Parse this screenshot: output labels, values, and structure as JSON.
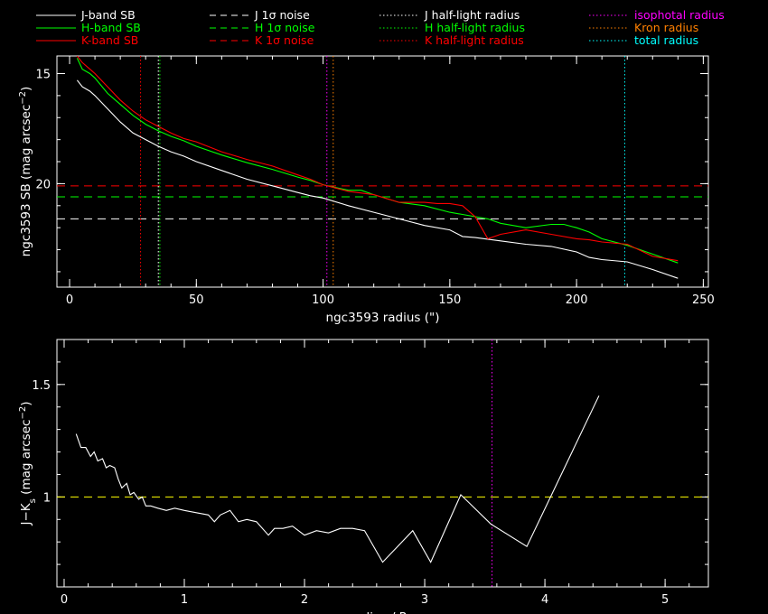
{
  "legend": {
    "columns": [
      [
        {
          "label": "J-band SB",
          "color": "#ffffff",
          "style": "solid"
        },
        {
          "label": "H-band SB",
          "color": "#00ff00",
          "style": "solid"
        },
        {
          "label": "K-band SB",
          "color": "#ff0000",
          "style": "solid"
        }
      ],
      [
        {
          "label": "J 1σ noise",
          "color": "#ffffff",
          "style": "dashed"
        },
        {
          "label": "H 1σ noise",
          "color": "#00ff00",
          "style": "dashed"
        },
        {
          "label": "K 1σ noise",
          "color": "#ff0000",
          "style": "dashed"
        }
      ],
      [
        {
          "label": "J half-light radius",
          "color": "#ffffff",
          "style": "dotted"
        },
        {
          "label": "H half-light radius",
          "color": "#00ff00",
          "style": "dotted"
        },
        {
          "label": "K half-light radius",
          "color": "#ff0000",
          "style": "dotted"
        }
      ],
      [
        {
          "label": "isophotal radius",
          "color": "#ff00ff",
          "style": "dotted",
          "label_color": "#ff00ff"
        },
        {
          "label": "Kron radius",
          "color": "#ff8000",
          "style": "dotted",
          "label_color": "#ff8000"
        },
        {
          "label": "total radius",
          "color": "#00ffff",
          "style": "dotted",
          "label_color": "#00ffff"
        }
      ]
    ]
  },
  "chart_data": [
    {
      "type": "line",
      "xlabel": "ngc3593 radius (\")",
      "ylabel": "ngc3593 SB (mag arcsec",
      "ylabel_sup": "−2",
      "ylabel_end": ")",
      "xlim": [
        -5,
        252
      ],
      "ylim": [
        24.7,
        14.2
      ],
      "xticks": [
        0,
        50,
        100,
        150,
        200,
        250
      ],
      "yticks": [
        15,
        20
      ],
      "series": [
        {
          "name": "J-band SB",
          "color": "#ffffff",
          "x": [
            3,
            5,
            8,
            10,
            15,
            20,
            25,
            30,
            35,
            40,
            45,
            50,
            60,
            70,
            80,
            90,
            95,
            100,
            110,
            120,
            130,
            140,
            150,
            155,
            160,
            170,
            180,
            190,
            200,
            205,
            210,
            220,
            230,
            240
          ],
          "y": [
            15.3,
            15.6,
            15.8,
            16.0,
            16.6,
            17.2,
            17.7,
            18.0,
            18.3,
            18.55,
            18.75,
            19.0,
            19.4,
            19.8,
            20.1,
            20.4,
            20.55,
            20.65,
            21.0,
            21.3,
            21.6,
            21.9,
            22.1,
            22.4,
            22.45,
            22.6,
            22.75,
            22.85,
            23.1,
            23.35,
            23.45,
            23.55,
            23.9,
            24.3
          ]
        },
        {
          "name": "H-band SB",
          "color": "#00ff00",
          "x": [
            3,
            5,
            8,
            10,
            15,
            20,
            25,
            30,
            35,
            40,
            45,
            50,
            60,
            70,
            80,
            90,
            95,
            100,
            110,
            115,
            120,
            130,
            140,
            150,
            155,
            165,
            170,
            180,
            190,
            195,
            200,
            205,
            210,
            220,
            230,
            240
          ],
          "y": [
            14.3,
            14.8,
            15.0,
            15.2,
            15.9,
            16.4,
            16.9,
            17.3,
            17.6,
            17.85,
            18.05,
            18.3,
            18.7,
            19.05,
            19.35,
            19.7,
            19.85,
            20.05,
            20.3,
            20.3,
            20.5,
            20.85,
            21.0,
            21.3,
            21.4,
            21.6,
            21.8,
            22.0,
            21.85,
            21.85,
            22.0,
            22.2,
            22.5,
            22.8,
            23.2,
            23.6
          ]
        },
        {
          "name": "K-band SB",
          "color": "#ff0000",
          "x": [
            3,
            5,
            8,
            10,
            15,
            20,
            25,
            30,
            35,
            40,
            45,
            50,
            60,
            70,
            80,
            90,
            95,
            100,
            105,
            110,
            120,
            130,
            135,
            140,
            145,
            150,
            155,
            160,
            165,
            170,
            180,
            190,
            200,
            205,
            210,
            220,
            230,
            240
          ],
          "y": [
            14.2,
            14.5,
            14.8,
            15.0,
            15.6,
            16.2,
            16.7,
            17.1,
            17.4,
            17.7,
            17.95,
            18.1,
            18.55,
            18.9,
            19.2,
            19.6,
            19.8,
            20.05,
            20.2,
            20.35,
            20.5,
            20.85,
            20.85,
            20.85,
            20.9,
            20.9,
            21.0,
            21.5,
            22.5,
            22.3,
            22.1,
            22.3,
            22.5,
            22.55,
            22.65,
            22.75,
            23.3,
            23.5
          ]
        }
      ],
      "hlines": [
        {
          "name": "J 1σ noise",
          "y": 21.6,
          "color": "#ffffff",
          "style": "dashed"
        },
        {
          "name": "H 1σ noise",
          "y": 20.6,
          "color": "#00ff00",
          "style": "dashed"
        },
        {
          "name": "K 1σ noise",
          "y": 20.1,
          "color": "#ff0000",
          "style": "dashed"
        }
      ],
      "vlines": [
        {
          "name": "K half-light radius",
          "x": 28,
          "color": "#ff0000",
          "style": "dotted"
        },
        {
          "name": "J half-light radius",
          "x": 35,
          "color": "#ffffff",
          "style": "dotted"
        },
        {
          "name": "H half-light radius",
          "x": 35.6,
          "color": "#00ff00",
          "style": "dotted"
        },
        {
          "name": "isophotal radius",
          "x": 101.5,
          "color": "#ff00ff",
          "style": "dotted"
        },
        {
          "name": "Kron radius",
          "x": 104,
          "color": "#ff8000",
          "style": "dotted"
        },
        {
          "name": "total radius",
          "x": 219,
          "color": "#00ffff",
          "style": "dotted"
        }
      ]
    },
    {
      "type": "line",
      "xlabel": "radius / R",
      "xlabel_sub": "Je",
      "ylabel": "J−K",
      "ylabel_sub": "s",
      "ylabel_rest": " (mag arcsec",
      "ylabel_sup": "−2",
      "ylabel_end": ")",
      "xlim": [
        -0.06,
        5.36
      ],
      "ylim": [
        0.6,
        1.7
      ],
      "xticks": [
        0,
        1,
        2,
        3,
        4,
        5
      ],
      "yticks": [
        1,
        1.5
      ],
      "ytick_labels": [
        "1",
        "1.5"
      ],
      "series": [
        {
          "name": "J−Ks",
          "color": "#ffffff",
          "x": [
            0.1,
            0.14,
            0.18,
            0.22,
            0.25,
            0.28,
            0.32,
            0.35,
            0.38,
            0.42,
            0.45,
            0.48,
            0.52,
            0.55,
            0.58,
            0.62,
            0.65,
            0.68,
            0.72,
            0.78,
            0.85,
            0.92,
            1.0,
            1.1,
            1.2,
            1.25,
            1.3,
            1.38,
            1.45,
            1.52,
            1.6,
            1.7,
            1.75,
            1.82,
            1.9,
            2.0,
            2.1,
            2.2,
            2.3,
            2.4,
            2.5,
            2.65,
            2.9,
            3.05,
            3.3,
            3.55,
            3.85,
            4.45
          ],
          "y": [
            1.28,
            1.22,
            1.22,
            1.18,
            1.2,
            1.16,
            1.17,
            1.13,
            1.14,
            1.13,
            1.08,
            1.04,
            1.06,
            1.01,
            1.02,
            0.99,
            1.0,
            0.96,
            0.96,
            0.95,
            0.94,
            0.95,
            0.94,
            0.93,
            0.92,
            0.89,
            0.92,
            0.94,
            0.89,
            0.9,
            0.89,
            0.83,
            0.86,
            0.86,
            0.87,
            0.83,
            0.85,
            0.84,
            0.86,
            0.86,
            0.85,
            0.71,
            0.85,
            0.71,
            1.01,
            0.88,
            0.78,
            1.45
          ]
        }
      ],
      "hlines": [
        {
          "name": "J−Ks reference",
          "y": 1.0,
          "color": "#ffff00",
          "style": "dashed"
        }
      ],
      "vlines": [
        {
          "name": "isophotal radius",
          "x": 3.56,
          "color": "#ff00ff",
          "style": "dotted"
        }
      ]
    }
  ]
}
